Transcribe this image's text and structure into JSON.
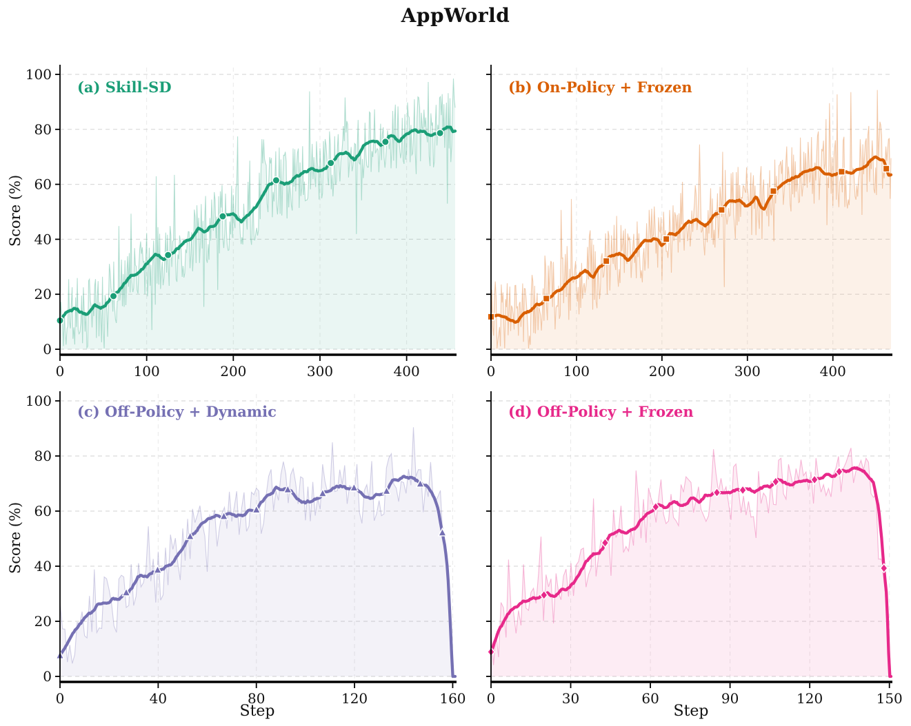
{
  "title": "AppWorld",
  "ylabel": "Score (%)",
  "xlabel": "Step",
  "yticks": [
    0,
    20,
    40,
    60,
    80,
    100
  ],
  "chart_data": [
    {
      "id": "a",
      "type": "line",
      "label": "(a) Skill-SD",
      "color": "#1b9e77",
      "marker": "circle",
      "xlim": [
        0,
        456
      ],
      "ylim": [
        0,
        100
      ],
      "xticks": [
        0,
        100,
        200,
        300,
        400
      ],
      "x": [
        0,
        10,
        20,
        30,
        40,
        50,
        60,
        70,
        80,
        90,
        100,
        110,
        120,
        130,
        140,
        150,
        160,
        170,
        180,
        190,
        200,
        210,
        220,
        230,
        240,
        250,
        260,
        270,
        280,
        290,
        300,
        310,
        320,
        330,
        340,
        350,
        360,
        370,
        380,
        390,
        400,
        410,
        420,
        430,
        440,
        450,
        453
      ],
      "y": [
        10.5,
        14,
        15,
        13,
        15.5,
        16,
        19,
        22,
        26,
        28,
        31,
        34,
        33,
        35,
        38,
        40,
        44,
        43,
        46,
        48,
        49,
        47,
        50,
        54,
        59,
        61,
        60,
        62,
        64,
        66,
        65,
        67,
        70,
        72,
        69,
        74,
        76,
        74,
        77,
        76,
        78,
        80,
        79,
        78,
        80,
        81,
        79
      ],
      "marker_x": [
        0,
        62,
        125,
        188,
        250,
        312,
        375,
        438
      ],
      "raw_noise_amplitude": 13,
      "show_ytick_labels": true
    },
    {
      "id": "b",
      "type": "line",
      "label": "(b) On-Policy + Frozen",
      "color": "#d95f02",
      "marker": "square",
      "xlim": [
        0,
        468
      ],
      "ylim": [
        0,
        100
      ],
      "xticks": [
        0,
        100,
        200,
        300,
        400
      ],
      "x": [
        0,
        10,
        20,
        30,
        40,
        50,
        60,
        70,
        80,
        90,
        100,
        110,
        120,
        130,
        140,
        150,
        160,
        170,
        180,
        190,
        200,
        210,
        220,
        230,
        240,
        250,
        260,
        270,
        280,
        290,
        300,
        310,
        320,
        330,
        340,
        350,
        360,
        370,
        380,
        390,
        400,
        410,
        420,
        430,
        440,
        450,
        460,
        465
      ],
      "y": [
        12,
        13,
        11,
        10,
        13,
        15,
        17,
        19,
        21,
        24,
        26,
        28,
        27,
        31,
        34,
        35,
        33,
        36,
        39,
        40,
        38,
        41,
        43,
        46,
        47,
        45,
        48,
        51,
        53,
        54,
        52,
        55,
        51,
        57,
        60,
        62,
        64,
        65,
        66,
        64,
        63,
        65,
        64,
        66,
        67,
        70,
        68,
        64
      ],
      "marker_x": [
        0,
        65,
        135,
        205,
        270,
        330,
        410,
        462
      ],
      "raw_noise_amplitude": 14,
      "show_ytick_labels": false
    },
    {
      "id": "c",
      "type": "line",
      "label": "(c) Off-Policy + Dynamic",
      "color": "#7570b3",
      "marker": "triangle",
      "xlim": [
        0,
        161
      ],
      "ylim": [
        0,
        100
      ],
      "xticks": [
        0,
        40,
        80,
        120,
        160
      ],
      "x": [
        0,
        4,
        8,
        12,
        16,
        20,
        24,
        28,
        32,
        36,
        40,
        44,
        48,
        52,
        56,
        60,
        64,
        68,
        72,
        76,
        80,
        84,
        88,
        92,
        96,
        100,
        104,
        108,
        112,
        116,
        120,
        124,
        128,
        132,
        136,
        140,
        144,
        148,
        152,
        154,
        156,
        157,
        158,
        159,
        160
      ],
      "y": [
        7,
        14,
        19,
        23,
        26,
        27,
        28,
        30,
        36,
        37,
        38,
        40,
        44,
        50,
        53,
        57,
        58,
        59,
        58,
        59,
        60,
        65,
        68,
        68,
        65,
        63,
        64,
        67,
        69,
        69,
        68,
        65,
        65,
        67,
        71,
        73,
        72,
        70,
        66,
        62,
        52,
        47,
        38,
        20,
        0
      ],
      "marker_x": [
        0,
        27,
        40,
        53,
        67,
        80,
        93,
        107,
        120,
        133,
        147,
        156
      ],
      "raw_noise_amplitude": 11,
      "show_ytick_labels": true
    },
    {
      "id": "d",
      "type": "line",
      "label": "(d) Off-Policy + Frozen",
      "color": "#e7298a",
      "marker": "diamond",
      "xlim": [
        0,
        150.6
      ],
      "ylim": [
        0,
        100
      ],
      "xticks": [
        0,
        30,
        60,
        90,
        120,
        150
      ],
      "x": [
        0,
        3,
        6,
        9,
        12,
        15,
        18,
        21,
        24,
        27,
        30,
        33,
        36,
        39,
        42,
        45,
        48,
        51,
        54,
        57,
        60,
        63,
        66,
        69,
        72,
        75,
        78,
        81,
        84,
        87,
        90,
        93,
        96,
        99,
        102,
        105,
        108,
        111,
        114,
        117,
        120,
        123,
        126,
        129,
        132,
        135,
        138,
        141,
        144,
        146,
        147,
        148,
        149,
        150
      ],
      "y": [
        9,
        17,
        22,
        25,
        27,
        28,
        28,
        30,
        29,
        31,
        33,
        37,
        42,
        44,
        47,
        52,
        53,
        51,
        54,
        57,
        60,
        62,
        61,
        63,
        62,
        64,
        63,
        65,
        66,
        67,
        66,
        68,
        68,
        67,
        69,
        69,
        71,
        70,
        70,
        71,
        71,
        72,
        73,
        73,
        74,
        75,
        75,
        74,
        70,
        60,
        50,
        38,
        29,
        0
      ],
      "marker_x": [
        0,
        20,
        43,
        62,
        85,
        95,
        107,
        122,
        131,
        148
      ],
      "raw_noise_amplitude": 10,
      "show_ytick_labels": false
    }
  ]
}
